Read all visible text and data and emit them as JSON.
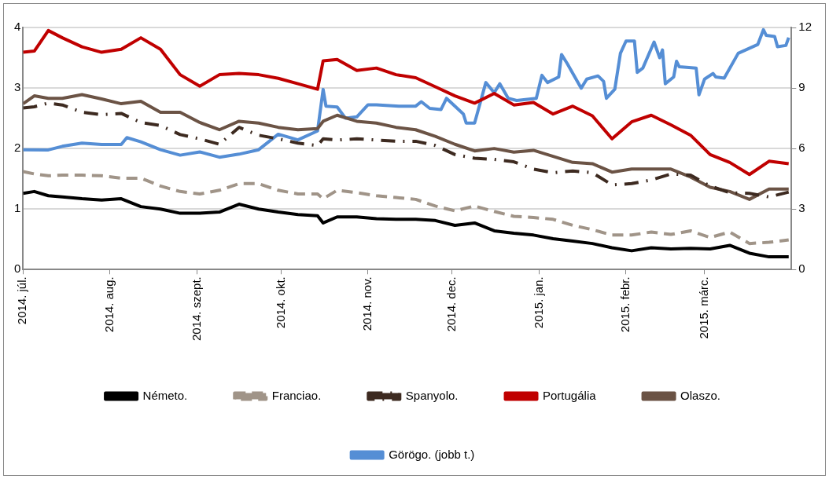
{
  "chart_data": {
    "type": "line",
    "x": [
      "2014-07-01",
      "2014-07-05",
      "2014-07-10",
      "2014-07-15",
      "2014-07-22",
      "2014-07-29",
      "2014-08-05",
      "2014-08-12",
      "2014-08-19",
      "2014-08-26",
      "2014-09-02",
      "2014-09-09",
      "2014-09-16",
      "2014-09-23",
      "2014-09-30",
      "2014-10-07",
      "2014-10-14",
      "2014-10-16",
      "2014-10-21",
      "2014-10-28",
      "2014-11-04",
      "2014-11-11",
      "2014-11-18",
      "2014-11-25",
      "2014-12-02",
      "2014-12-09",
      "2014-12-16",
      "2014-12-23",
      "2014-12-30",
      "2015-01-06",
      "2015-01-13",
      "2015-01-20",
      "2015-01-27",
      "2015-02-03",
      "2015-02-10",
      "2015-02-17",
      "2015-02-24",
      "2015-03-03",
      "2015-03-10",
      "2015-03-17",
      "2015-03-24",
      "2015-03-31"
    ],
    "series": [
      {
        "name": "Németo.",
        "color": "#000000",
        "line_style": "solid",
        "values": [
          1.26,
          1.29,
          1.22,
          1.2,
          1.17,
          1.15,
          1.17,
          1.04,
          1.0,
          0.93,
          0.93,
          0.95,
          1.08,
          1.0,
          0.95,
          0.91,
          0.89,
          0.77,
          0.87,
          0.87,
          0.84,
          0.83,
          0.83,
          0.81,
          0.73,
          0.77,
          0.64,
          0.6,
          0.57,
          0.51,
          0.47,
          0.43,
          0.36,
          0.31,
          0.36,
          0.34,
          0.35,
          0.34,
          0.4,
          0.27,
          0.21,
          0.21
        ]
      },
      {
        "name": "Franciao.",
        "color": "#a09488",
        "line_style": "dashed",
        "values": [
          1.62,
          1.58,
          1.55,
          1.56,
          1.56,
          1.55,
          1.51,
          1.51,
          1.38,
          1.29,
          1.25,
          1.31,
          1.42,
          1.42,
          1.31,
          1.25,
          1.25,
          1.17,
          1.31,
          1.27,
          1.22,
          1.19,
          1.16,
          1.05,
          0.97,
          1.05,
          0.96,
          0.88,
          0.86,
          0.83,
          0.73,
          0.66,
          0.57,
          0.57,
          0.62,
          0.58,
          0.64,
          0.53,
          0.62,
          0.43,
          0.45,
          0.49
        ]
      },
      {
        "name": "Spanyolo.",
        "color": "#3d2a20",
        "line_style": "dashdot",
        "values": [
          2.67,
          2.69,
          2.75,
          2.72,
          2.6,
          2.56,
          2.58,
          2.43,
          2.38,
          2.23,
          2.16,
          2.07,
          2.35,
          2.22,
          2.16,
          2.09,
          2.05,
          2.16,
          2.14,
          2.16,
          2.14,
          2.12,
          2.12,
          2.05,
          1.9,
          1.84,
          1.82,
          1.78,
          1.66,
          1.6,
          1.63,
          1.6,
          1.4,
          1.42,
          1.48,
          1.58,
          1.56,
          1.38,
          1.27,
          1.26,
          1.2,
          1.28
        ]
      },
      {
        "name": "Portugália",
        "color": "#c00000",
        "line_style": "solid",
        "values": [
          3.59,
          3.61,
          3.95,
          3.83,
          3.68,
          3.59,
          3.64,
          3.83,
          3.64,
          3.22,
          3.03,
          3.22,
          3.24,
          3.22,
          3.16,
          3.07,
          2.98,
          3.45,
          3.47,
          3.29,
          3.33,
          3.22,
          3.17,
          3.02,
          2.87,
          2.75,
          2.91,
          2.72,
          2.76,
          2.57,
          2.7,
          2.54,
          2.16,
          2.44,
          2.55,
          2.39,
          2.22,
          1.9,
          1.77,
          1.57,
          1.79,
          1.75
        ]
      },
      {
        "name": "Olaszo.",
        "color": "#6b5345",
        "line_style": "solid",
        "values": [
          2.74,
          2.87,
          2.83,
          2.83,
          2.89,
          2.82,
          2.74,
          2.78,
          2.6,
          2.6,
          2.43,
          2.31,
          2.45,
          2.42,
          2.35,
          2.31,
          2.33,
          2.45,
          2.55,
          2.45,
          2.42,
          2.35,
          2.31,
          2.2,
          2.07,
          1.96,
          2.0,
          1.94,
          1.97,
          1.87,
          1.77,
          1.75,
          1.61,
          1.66,
          1.66,
          1.66,
          1.53,
          1.36,
          1.29,
          1.16,
          1.33,
          1.33
        ]
      },
      {
        "name": "Görögo. (jobb t.)",
        "color": "#558ed5",
        "line_style": "solid",
        "axis": "y2",
        "x": [
          "2014-07-01",
          "2014-07-10",
          "2014-07-15",
          "2014-07-22",
          "2014-07-29",
          "2014-08-05",
          "2014-08-07",
          "2014-08-12",
          "2014-08-19",
          "2014-08-26",
          "2014-09-02",
          "2014-09-09",
          "2014-09-16",
          "2014-09-23",
          "2014-09-30",
          "2014-10-07",
          "2014-10-14",
          "2014-10-16",
          "2014-10-17",
          "2014-10-21",
          "2014-10-24",
          "2014-10-28",
          "2014-11-01",
          "2014-11-04",
          "2014-11-12",
          "2014-11-18",
          "2014-11-20",
          "2014-11-23",
          "2014-11-27",
          "2014-11-29",
          "2014-12-05",
          "2014-12-06",
          "2014-12-09",
          "2014-12-13",
          "2014-12-16",
          "2014-12-18",
          "2014-12-21",
          "2014-12-24",
          "2014-12-31",
          "2015-01-02",
          "2015-01-04",
          "2015-01-08",
          "2015-01-09",
          "2015-01-11",
          "2015-01-16",
          "2015-01-18",
          "2015-01-22",
          "2015-01-24",
          "2015-01-25",
          "2015-01-28",
          "2015-01-30",
          "2015-02-01",
          "2015-02-04",
          "2015-02-05",
          "2015-02-07",
          "2015-02-11",
          "2015-02-13",
          "2015-02-14",
          "2015-02-15",
          "2015-02-18",
          "2015-02-19",
          "2015-02-20",
          "2015-02-26",
          "2015-02-27",
          "2015-03-01",
          "2015-03-04",
          "2015-03-05",
          "2015-03-08",
          "2015-03-13",
          "2015-03-20",
          "2015-03-22",
          "2015-03-23",
          "2015-03-26",
          "2015-03-27",
          "2015-03-30",
          "2015-03-31"
        ],
        "values": [
          5.94,
          5.93,
          6.11,
          6.27,
          6.2,
          6.2,
          6.54,
          6.33,
          5.94,
          5.67,
          5.83,
          5.57,
          5.72,
          5.94,
          6.71,
          6.43,
          6.87,
          8.93,
          8.1,
          8.06,
          7.5,
          7.57,
          8.17,
          8.17,
          8.1,
          8.1,
          8.32,
          7.99,
          7.93,
          8.49,
          7.71,
          7.26,
          7.26,
          9.27,
          8.77,
          9.21,
          8.49,
          8.38,
          8.49,
          9.63,
          9.27,
          9.55,
          10.66,
          10.22,
          8.99,
          9.44,
          9.6,
          9.33,
          8.49,
          8.94,
          10.72,
          11.33,
          11.33,
          9.77,
          9.99,
          11.28,
          10.5,
          10.89,
          9.21,
          9.55,
          10.33,
          10.05,
          9.99,
          8.66,
          9.44,
          9.72,
          9.55,
          9.49,
          10.72,
          11.16,
          11.89,
          11.61,
          11.55,
          11.05,
          11.11,
          11.5
        ]
      }
    ],
    "xlim": [
      "2014-07-01",
      "2015-04-01"
    ],
    "xticks": [
      {
        "value": "2014-07-01",
        "label": "2014. júl."
      },
      {
        "value": "2014-08-01",
        "label": "2014. aug."
      },
      {
        "value": "2014-09-01",
        "label": "2014. szept."
      },
      {
        "value": "2014-10-01",
        "label": "2014. okt."
      },
      {
        "value": "2014-11-01",
        "label": "2014. nov."
      },
      {
        "value": "2014-12-01",
        "label": "2014. dec."
      },
      {
        "value": "2015-01-01",
        "label": "2015. jan."
      },
      {
        "value": "2015-02-01",
        "label": "2015. febr."
      },
      {
        "value": "2015-03-01",
        "label": "2015. márc."
      }
    ],
    "ylim": [
      0,
      4
    ],
    "yticks": [
      0,
      1,
      2,
      3,
      4
    ],
    "y2lim": [
      0,
      12
    ],
    "y2ticks": [
      0,
      3,
      6,
      9,
      12
    ],
    "grid": "y",
    "legend": "bottom"
  }
}
